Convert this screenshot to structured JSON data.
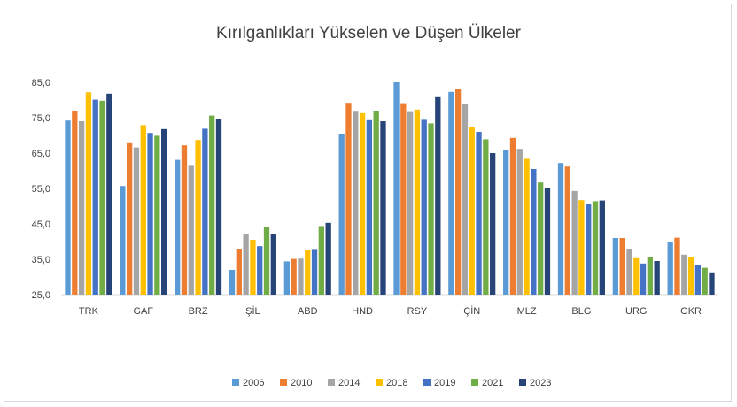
{
  "chart_data": {
    "type": "bar",
    "title": "Kırılganlıkları Yükselen ve Düşen Ülkeler",
    "xlabel": "",
    "ylabel": "",
    "ylim": [
      25,
      85
    ],
    "yticks": [
      25,
      35,
      45,
      55,
      65,
      75,
      85
    ],
    "ytick_labels": [
      "25,0",
      "35,0",
      "45,0",
      "55,0",
      "65,0",
      "75,0",
      "85,0"
    ],
    "grid": "none",
    "legend_position": "bottom",
    "categories": [
      "TRK",
      "GAF",
      "BRZ",
      "ŞİL",
      "ABD",
      "HND",
      "RSY",
      "ÇİN",
      "MLZ",
      "BLG",
      "URG",
      "GKR"
    ],
    "series": [
      {
        "name": "2006",
        "color": "#5b9bd5",
        "values": [
          74.2,
          55.7,
          63.1,
          32.0,
          34.4,
          70.3,
          85.0,
          82.3,
          66.0,
          62.2,
          41.0,
          40.0
        ]
      },
      {
        "name": "2010",
        "color": "#ed7d31",
        "values": [
          77.0,
          67.8,
          67.2,
          38.0,
          35.1,
          79.2,
          79.1,
          83.0,
          69.3,
          61.2,
          41.0,
          41.1
        ]
      },
      {
        "name": "2014",
        "color": "#a5a5a5",
        "values": [
          74.0,
          66.6,
          61.4,
          42.0,
          35.2,
          76.7,
          76.6,
          79.0,
          66.2,
          54.3,
          38.0,
          36.3
        ]
      },
      {
        "name": "2018",
        "color": "#ffc000",
        "values": [
          82.2,
          72.9,
          68.7,
          40.5,
          37.6,
          76.3,
          77.3,
          72.3,
          63.4,
          51.7,
          35.3,
          35.6
        ]
      },
      {
        "name": "2019",
        "color": "#4472c4",
        "values": [
          80.1,
          70.7,
          71.9,
          38.7,
          37.9,
          74.3,
          74.4,
          71.0,
          60.5,
          50.5,
          33.8,
          33.5
        ]
      },
      {
        "name": "2021",
        "color": "#70ad47",
        "values": [
          79.8,
          69.9,
          75.6,
          44.1,
          44.4,
          77.0,
          73.4,
          68.9,
          56.7,
          51.4,
          35.7,
          32.6
        ]
      },
      {
        "name": "2023",
        "color": "#264478",
        "values": [
          81.8,
          71.8,
          74.6,
          42.2,
          45.3,
          74.0,
          80.8,
          65.0,
          55.0,
          51.6,
          34.5,
          31.3
        ]
      }
    ]
  }
}
